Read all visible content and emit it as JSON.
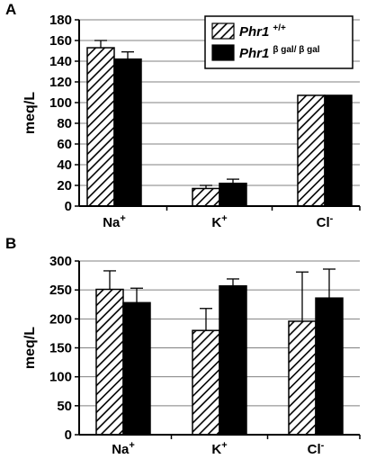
{
  "chart_data": [
    {
      "panel": "A",
      "type": "bar",
      "ylabel": "meq/L",
      "ylim": [
        0,
        180
      ],
      "yticks": [
        "0",
        "20",
        "40",
        "60",
        "80",
        "100",
        "120",
        "140",
        "160",
        "180"
      ],
      "grid": true,
      "legend_position": "top-right",
      "categories": [
        {
          "base": "Na",
          "sup": "+"
        },
        {
          "base": "K",
          "sup": "+"
        },
        {
          "base": "Cl",
          "sup": "-"
        }
      ],
      "series": [
        {
          "name": "Phr1",
          "sup": "+/+",
          "pattern": "hatch",
          "values": [
            153,
            17,
            107
          ],
          "errors": [
            7,
            3,
            0
          ]
        },
        {
          "name": "Phr1",
          "sup": "β gal/ β gal",
          "pattern": "solid",
          "values": [
            142,
            22,
            107
          ],
          "errors": [
            7,
            4,
            0
          ]
        }
      ]
    },
    {
      "panel": "B",
      "type": "bar",
      "ylabel": "meq/L",
      "ylim": [
        0,
        300
      ],
      "yticks": [
        "0",
        "50",
        "100",
        "150",
        "200",
        "250",
        "300"
      ],
      "grid": true,
      "categories": [
        {
          "base": "Na",
          "sup": "+"
        },
        {
          "base": "K",
          "sup": "+"
        },
        {
          "base": "Cl",
          "sup": "-"
        }
      ],
      "series": [
        {
          "name": "Phr1",
          "sup": "+/+",
          "pattern": "hatch",
          "values": [
            251,
            180,
            196
          ],
          "errors": [
            32,
            38,
            85
          ]
        },
        {
          "name": "Phr1",
          "sup": "β gal/ β gal",
          "pattern": "solid",
          "values": [
            228,
            257,
            236
          ],
          "errors": [
            25,
            12,
            50
          ]
        }
      ]
    }
  ],
  "colors": {
    "solid": "#000000",
    "hatch_stroke": "#000000",
    "grid": "#808080",
    "background": "#ffffff"
  }
}
